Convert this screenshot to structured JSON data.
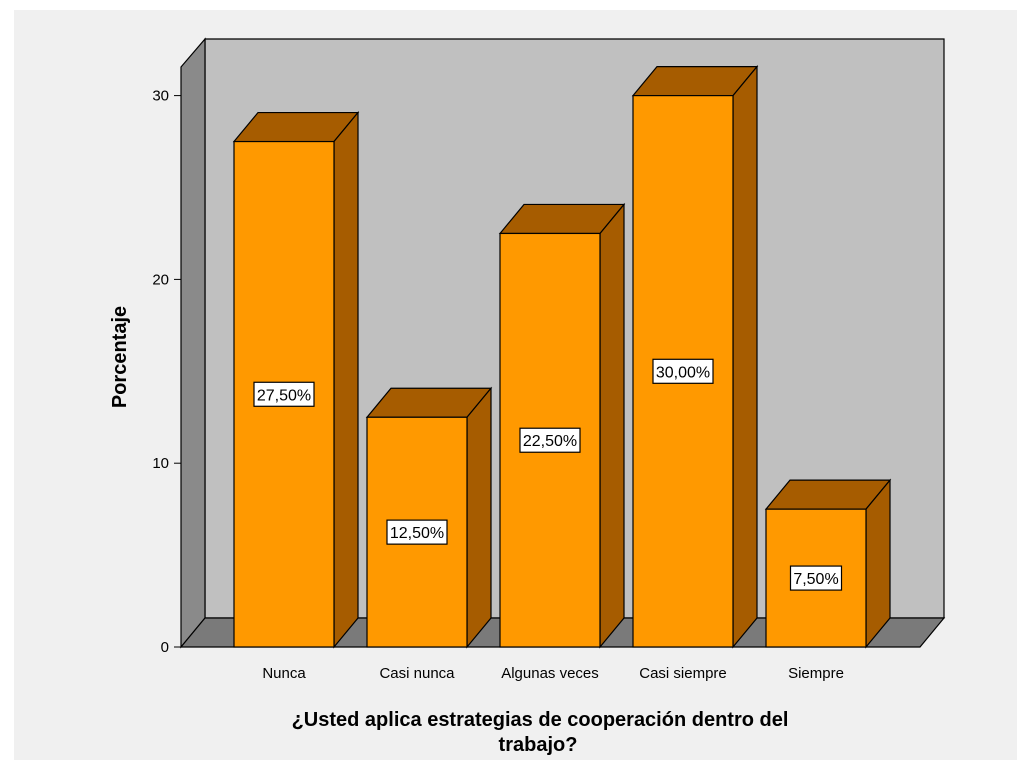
{
  "chart_data": {
    "type": "bar",
    "style": "3d",
    "categories": [
      "Nunca",
      "Casi nunca",
      "Algunas veces",
      "Casi siempre",
      "Siempre"
    ],
    "values": [
      27.5,
      12.5,
      22.5,
      30.0,
      7.5
    ],
    "data_labels": [
      "27,50%",
      "12,50%",
      "22,50%",
      "30,00%",
      "7,50%"
    ],
    "ylabel": "Porcentaje",
    "xlabel_lines": [
      "¿Usted aplica estrategias de cooperación  dentro del",
      "trabajo?"
    ],
    "yticks": [
      0,
      10,
      20,
      30
    ],
    "ylim": [
      0,
      30
    ],
    "grid": false,
    "colors": {
      "bar_front": "#ff9900",
      "bar_top": "#a65c00",
      "bar_side": "#a65c00",
      "back_wall": "#c0c0c0",
      "side_wall": "#8a8a8a",
      "floor": "#7a7a7a",
      "outline": "#000000",
      "background": "#f0f0f0"
    }
  }
}
